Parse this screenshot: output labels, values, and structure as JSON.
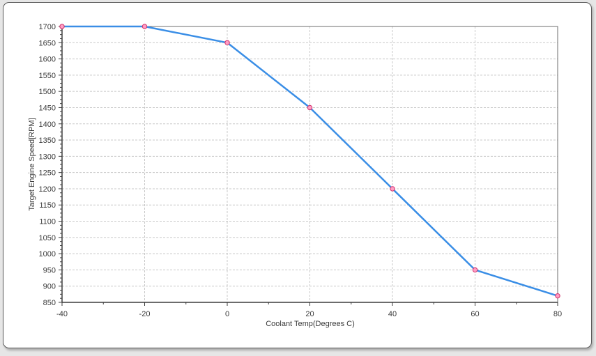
{
  "chart_data": {
    "type": "line",
    "title": "",
    "xlabel": "Coolant Temp(Degrees C)",
    "ylabel": "Target Engine Speed[RPM]",
    "xlim": [
      -40,
      80
    ],
    "ylim": [
      850,
      1700
    ],
    "xticks": [
      -40,
      -20,
      0,
      20,
      40,
      60,
      80
    ],
    "yticks": [
      850,
      900,
      950,
      1000,
      1050,
      1100,
      1150,
      1200,
      1250,
      1300,
      1350,
      1400,
      1450,
      1500,
      1550,
      1600,
      1650,
      1700
    ],
    "grid": true,
    "legend": "none",
    "series": [
      {
        "x": [
          -40,
          -20,
          0,
          20,
          40,
          60,
          80
        ],
        "y": [
          1700,
          1700,
          1650,
          1450,
          1200,
          950,
          870
        ],
        "line_color": "#3a8ee6",
        "marker_color": "#ff9ec4",
        "marker_edge": "#d0306a"
      }
    ]
  }
}
